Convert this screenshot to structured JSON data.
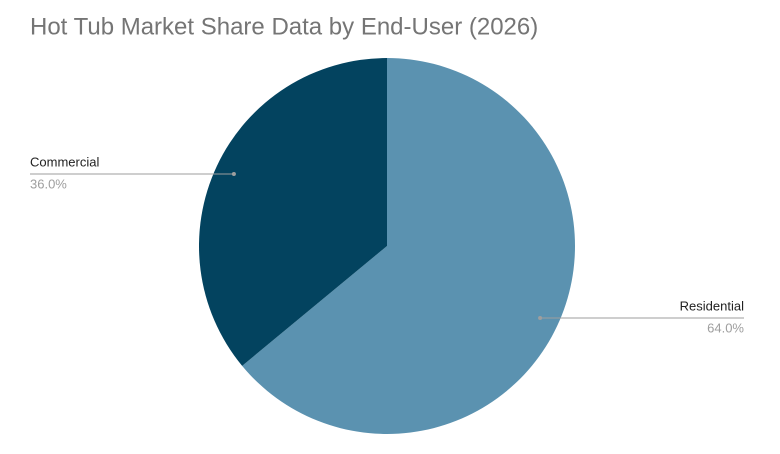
{
  "chart_data": {
    "type": "pie",
    "title": "Hot Tub Market Share Data by End-User (2026)",
    "categories": [
      "Residential",
      "Commercial"
    ],
    "values": [
      64.0,
      36.0
    ],
    "value_labels": [
      "64.0%",
      "36.0%"
    ],
    "colors": [
      "#5b92b0",
      "#03435f"
    ]
  }
}
